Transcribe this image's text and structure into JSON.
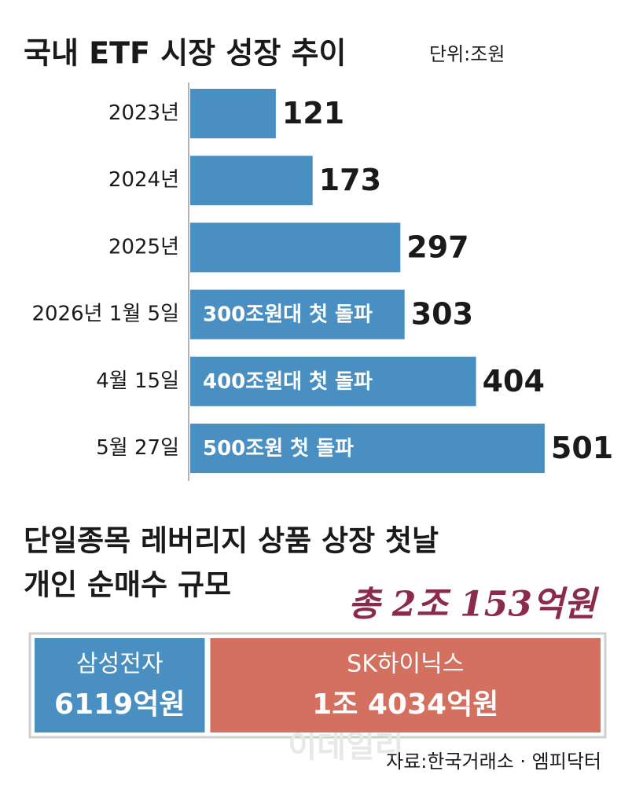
{
  "chart_data": [
    {
      "type": "hbar",
      "title": "국내 ETF 시장 성장 추이",
      "unit": "단위:조원",
      "categories": [
        "2023년",
        "2024년",
        "2025년",
        "2026년 1월 5일",
        "4월 15일",
        "5월 27일"
      ],
      "values": [
        121,
        173,
        297,
        303,
        404,
        501
      ],
      "annotations": [
        null,
        null,
        null,
        "300조원대 첫 돌파",
        "400조원대 첫 돌파",
        "500조원 첫 돌파"
      ],
      "color": "#4a8fc1",
      "xlim": [
        0,
        560
      ]
    },
    {
      "type": "split-bar",
      "title": [
        "단일종목 레버리지 상품 상장 첫날",
        "개인 순매수 규모"
      ],
      "total": {
        "value": 20153,
        "label": "총 2조 153억원"
      },
      "categories": [
        "삼성전자",
        "SK하이닉스"
      ],
      "values": [
        6119,
        14034
      ],
      "value_labels": [
        "6119억원",
        "1조 4034억원"
      ],
      "colors": [
        "#4a8fc1",
        "#d4705f"
      ]
    }
  ],
  "watermark": "이데일리",
  "source": "자료:한국거래소 · 엠피닥터"
}
